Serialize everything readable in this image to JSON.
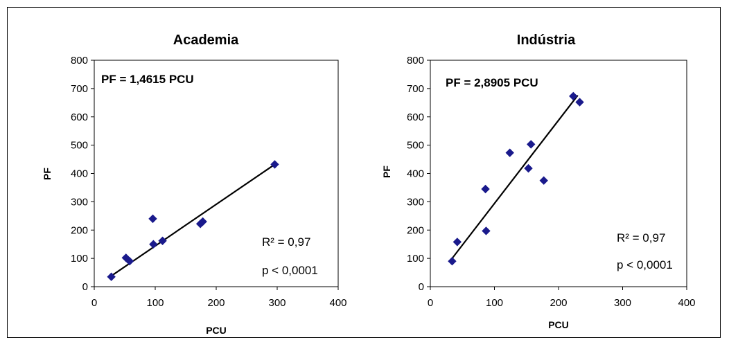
{
  "chart_data": [
    {
      "type": "scatter",
      "title": "Academia",
      "xlabel": "PCU",
      "ylabel": "PF",
      "xlim": [
        0,
        400
      ],
      "ylim": [
        0,
        800
      ],
      "xticks": [
        "0",
        "100",
        "200",
        "300",
        "400"
      ],
      "yticks": [
        "0",
        "100",
        "200",
        "300",
        "400",
        "500",
        "600",
        "700",
        "800"
      ],
      "points": [
        {
          "x": 28,
          "y": 35
        },
        {
          "x": 52,
          "y": 102
        },
        {
          "x": 58,
          "y": 90
        },
        {
          "x": 96,
          "y": 240
        },
        {
          "x": 97,
          "y": 150
        },
        {
          "x": 112,
          "y": 162
        },
        {
          "x": 174,
          "y": 222
        },
        {
          "x": 178,
          "y": 230
        },
        {
          "x": 296,
          "y": 432
        }
      ],
      "trendline": {
        "x": [
          28,
          296
        ],
        "y": [
          38,
          432
        ]
      },
      "equation": "PF = 1,4615 PCU",
      "r2": "R² = 0,97",
      "p": "p < 0,0001",
      "marker_color": "#1a1a8c"
    },
    {
      "type": "scatter",
      "title": "Indústria",
      "xlabel": "PCU",
      "ylabel": "PF",
      "xlim": [
        0,
        400
      ],
      "ylim": [
        0,
        800
      ],
      "xticks": [
        "0",
        "100",
        "200",
        "300",
        "400"
      ],
      "yticks": [
        "0",
        "100",
        "200",
        "300",
        "400",
        "500",
        "600",
        "700",
        "800"
      ],
      "points": [
        {
          "x": 34,
          "y": 90
        },
        {
          "x": 42,
          "y": 158
        },
        {
          "x": 86,
          "y": 345
        },
        {
          "x": 87,
          "y": 197
        },
        {
          "x": 124,
          "y": 473
        },
        {
          "x": 153,
          "y": 418
        },
        {
          "x": 157,
          "y": 503
        },
        {
          "x": 177,
          "y": 375
        },
        {
          "x": 223,
          "y": 673
        },
        {
          "x": 233,
          "y": 652
        }
      ],
      "trendline": {
        "x": [
          34,
          230
        ],
        "y": [
          100,
          676
        ]
      },
      "equation": "PF = 2,8905 PCU",
      "r2": "R² = 0,97",
      "p": "p < 0,0001",
      "marker_color": "#1a1a8c"
    }
  ]
}
